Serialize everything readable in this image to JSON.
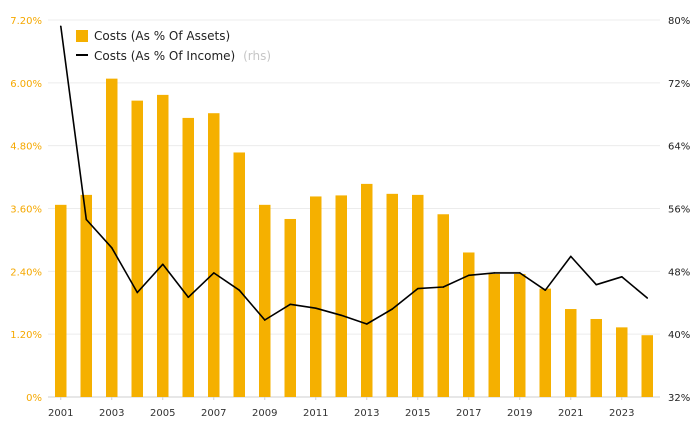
{
  "chart_data": {
    "type": "bar+line",
    "x": [
      2001,
      2002,
      2003,
      2004,
      2005,
      2006,
      2007,
      2008,
      2009,
      2010,
      2011,
      2012,
      2013,
      2014,
      2015,
      2016,
      2017,
      2018,
      2019,
      2020,
      2021,
      2022,
      2023,
      2024
    ],
    "x_tick_labels": [
      "2001",
      "2003",
      "2005",
      "2007",
      "2009",
      "2011",
      "2013",
      "2015",
      "2017",
      "2019",
      "2021",
      "2023"
    ],
    "series": [
      {
        "name": "Costs (As % Of Assets)",
        "type": "bar",
        "axis": "left",
        "color": "#f5b000",
        "values": [
          3.67,
          3.86,
          6.08,
          5.66,
          5.77,
          5.33,
          5.42,
          4.67,
          3.67,
          3.4,
          3.83,
          3.85,
          4.07,
          3.88,
          3.86,
          3.49,
          2.76,
          2.35,
          2.35,
          2.07,
          1.68,
          1.49,
          1.33,
          1.18
        ]
      },
      {
        "name": "Costs (As % Of Income)",
        "legend_note": "(rhs)",
        "type": "line",
        "axis": "right",
        "color": "#000000",
        "values": [
          79.2,
          54.6,
          51.0,
          45.3,
          48.9,
          44.7,
          47.8,
          45.6,
          41.8,
          43.8,
          43.3,
          42.4,
          41.3,
          43.2,
          45.8,
          46.0,
          47.5,
          47.8,
          47.8,
          45.6,
          49.9,
          46.3,
          47.3,
          44.6
        ]
      }
    ],
    "y_left": {
      "min": 0,
      "max": 7.2,
      "ticks": [
        "0%",
        "1.20%",
        "2.40%",
        "3.60%",
        "4.80%",
        "6.00%",
        "7.20%"
      ]
    },
    "y_right": {
      "min": 32,
      "max": 80,
      "ticks": [
        "32%",
        "40%",
        "48%",
        "56%",
        "64%",
        "72%",
        "80%"
      ]
    },
    "grid": true,
    "legend_position": "top-left"
  }
}
